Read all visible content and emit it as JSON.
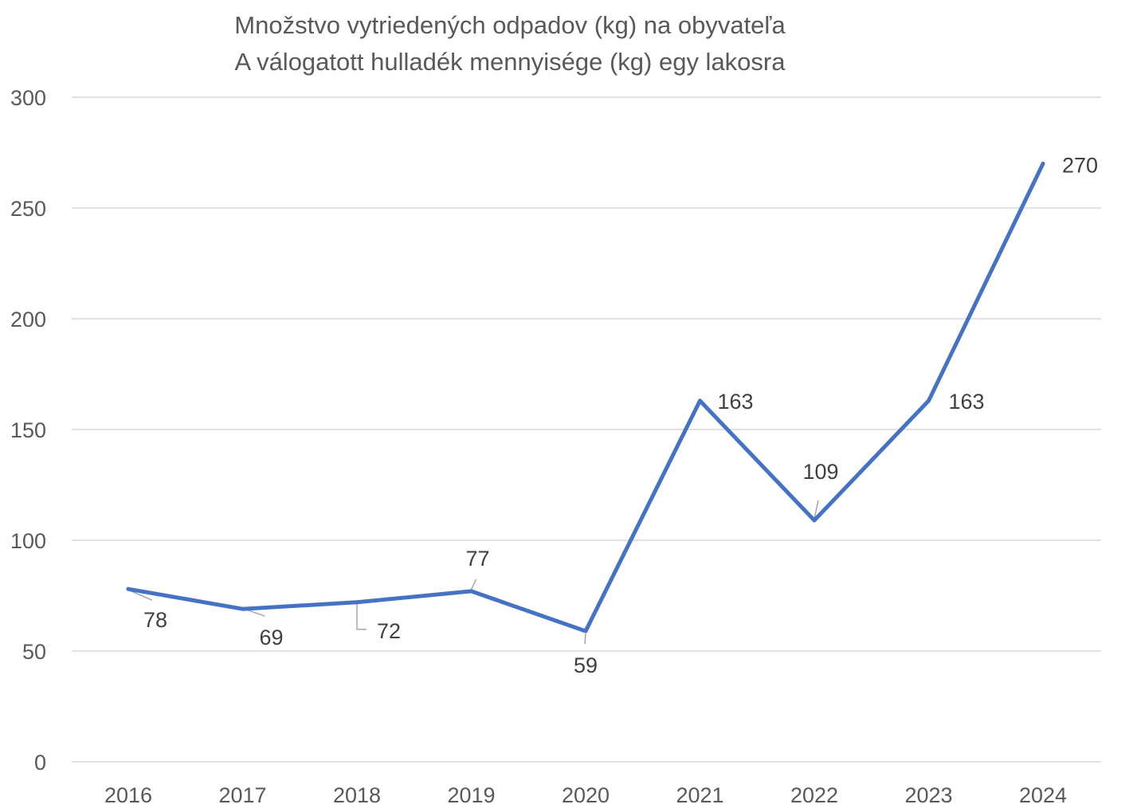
{
  "chart_data": {
    "type": "line",
    "title": "Množstvo vytriedených odpadov (kg) na obyvateľa",
    "subtitle": "A válogatott hulladék mennyisége (kg) egy lakosra",
    "categories": [
      "2016",
      "2017",
      "2018",
      "2019",
      "2020",
      "2021",
      "2022",
      "2023",
      "2024"
    ],
    "series": [
      {
        "values": [
          78,
          69,
          72,
          77,
          59,
          163,
          109,
          163,
          270
        ],
        "color": "#4472C4"
      }
    ],
    "data_labels": [
      "78",
      "69",
      "72",
      "77",
      "59",
      "163",
      "109",
      "163",
      "270"
    ],
    "y_ticks": [
      0,
      50,
      100,
      150,
      200,
      250,
      300
    ],
    "ylim": [
      0,
      300
    ],
    "grid": true,
    "legend": "none",
    "xlabel": "",
    "ylabel": "",
    "colors": {
      "line": "#4472C4",
      "grid": "#d9d9d9",
      "text": "#595959",
      "label_text": "#404040",
      "leader": "#a6a6a6"
    }
  }
}
